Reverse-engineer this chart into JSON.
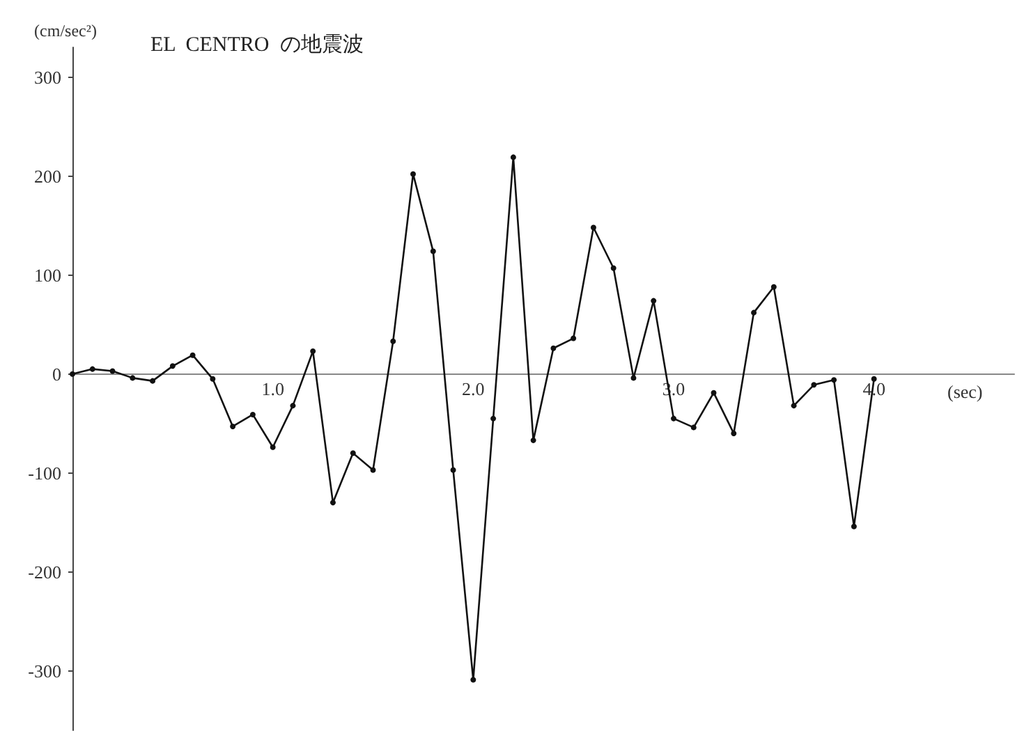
{
  "chart_data": {
    "type": "line",
    "title": "EL  CENTRO  の地震波",
    "ylabel": "(cm/sec²)",
    "xlabel": "(sec)",
    "x": [
      0,
      0.1,
      0.2,
      0.3,
      0.4,
      0.5,
      0.6,
      0.7,
      0.8,
      0.9,
      1.0,
      1.1,
      1.2,
      1.3,
      1.4,
      1.5,
      1.6,
      1.7,
      1.8,
      1.9,
      2.0,
      2.1,
      2.2,
      2.3,
      2.4,
      2.5,
      2.6,
      2.7,
      2.8,
      2.9,
      3.0,
      3.1,
      3.2,
      3.3,
      3.4,
      3.5,
      3.6,
      3.7,
      3.8,
      3.9,
      4.0
    ],
    "series": [
      {
        "color": "#111111",
        "values": [
          0,
          5,
          3,
          -4,
          -7,
          8,
          19,
          -5,
          -53,
          -41,
          -74,
          -32,
          23,
          -130,
          -80,
          -97,
          33,
          202,
          124,
          -97,
          -309,
          -45,
          219,
          -67,
          26,
          36,
          148,
          107,
          -4,
          74,
          -45,
          -54,
          -19,
          -60,
          62,
          88,
          -32,
          -11,
          -6,
          -154,
          -5
        ]
      }
    ],
    "xlim": [
      0,
      4.7
    ],
    "xticks": [
      {
        "value": 1,
        "label": "1.0"
      },
      {
        "value": 2,
        "label": "2.0"
      },
      {
        "value": 3,
        "label": "3.0"
      },
      {
        "value": 4,
        "label": "4.0"
      }
    ],
    "ylim": [
      -360,
      330
    ],
    "yticks": [
      -300,
      -200,
      -100,
      0,
      100,
      200,
      300
    ],
    "marker": "circle",
    "line_style": "solid"
  }
}
